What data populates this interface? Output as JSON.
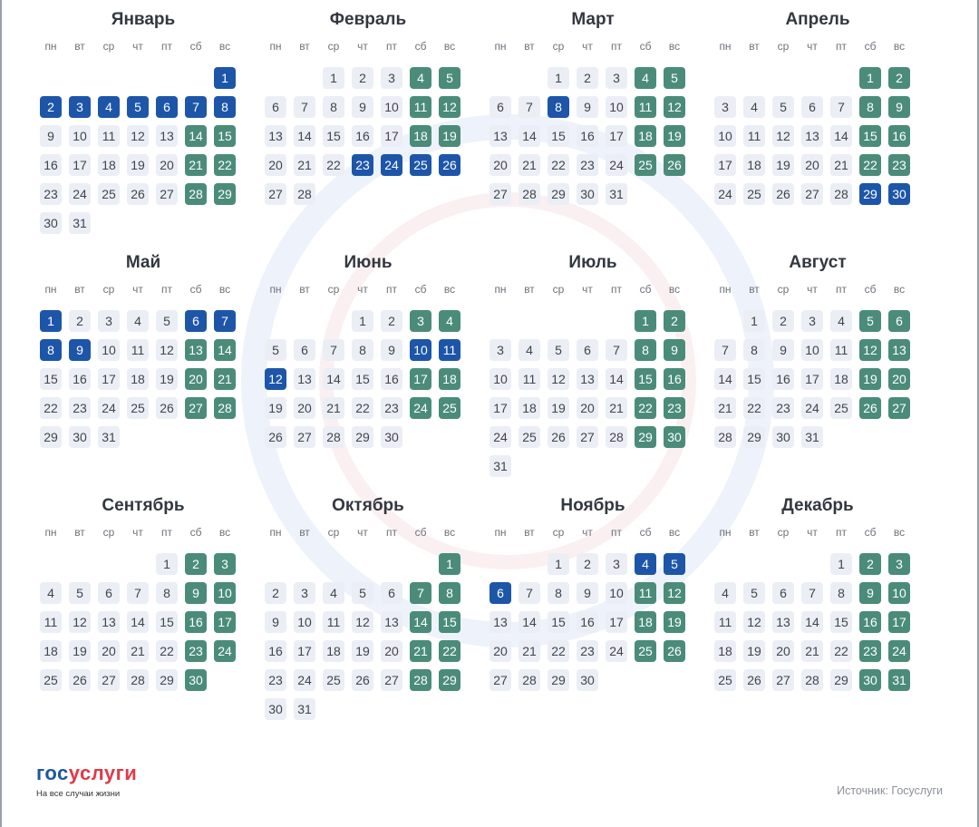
{
  "weekdays": [
    "пн",
    "вт",
    "ср",
    "чт",
    "пт",
    "сб",
    "вс"
  ],
  "months": [
    {
      "name": "Январь",
      "start": 6,
      "days": 31,
      "holidays": [
        1,
        2,
        3,
        4,
        5,
        6,
        7,
        8
      ],
      "extra_weekends": []
    },
    {
      "name": "Февраль",
      "start": 2,
      "days": 28,
      "holidays": [
        23,
        24,
        25,
        26
      ],
      "extra_weekends": []
    },
    {
      "name": "Март",
      "start": 2,
      "days": 31,
      "holidays": [
        8
      ],
      "extra_weekends": []
    },
    {
      "name": "Апрель",
      "start": 5,
      "days": 30,
      "holidays": [
        29,
        30
      ],
      "extra_weekends": []
    },
    {
      "name": "Май",
      "start": 0,
      "days": 31,
      "holidays": [
        1,
        6,
        7,
        8,
        9
      ],
      "extra_weekends": []
    },
    {
      "name": "Июнь",
      "start": 3,
      "days": 30,
      "holidays": [
        10,
        11,
        12
      ],
      "extra_weekends": []
    },
    {
      "name": "Июль",
      "start": 5,
      "days": 31,
      "holidays": [],
      "extra_weekends": []
    },
    {
      "name": "Август",
      "start": 1,
      "days": 31,
      "holidays": [],
      "extra_weekends": []
    },
    {
      "name": "Сентябрь",
      "start": 4,
      "days": 30,
      "holidays": [],
      "extra_weekends": []
    },
    {
      "name": "Октябрь",
      "start": 6,
      "days": 31,
      "holidays": [],
      "extra_weekends": []
    },
    {
      "name": "Ноябрь",
      "start": 2,
      "days": 30,
      "holidays": [
        4,
        5,
        6
      ],
      "extra_weekends": []
    },
    {
      "name": "Декабрь",
      "start": 4,
      "days": 31,
      "holidays": [],
      "extra_weekends": [
        30,
        31
      ]
    }
  ],
  "colors": {
    "workday": "#ebeef5",
    "weekend": "#4a8c79",
    "holiday": "#1d56a8"
  },
  "logo": {
    "part1": "гос",
    "part2": "услуги",
    "tagline": "На все случаи жизни"
  },
  "source": "Источник: Госуслуги"
}
